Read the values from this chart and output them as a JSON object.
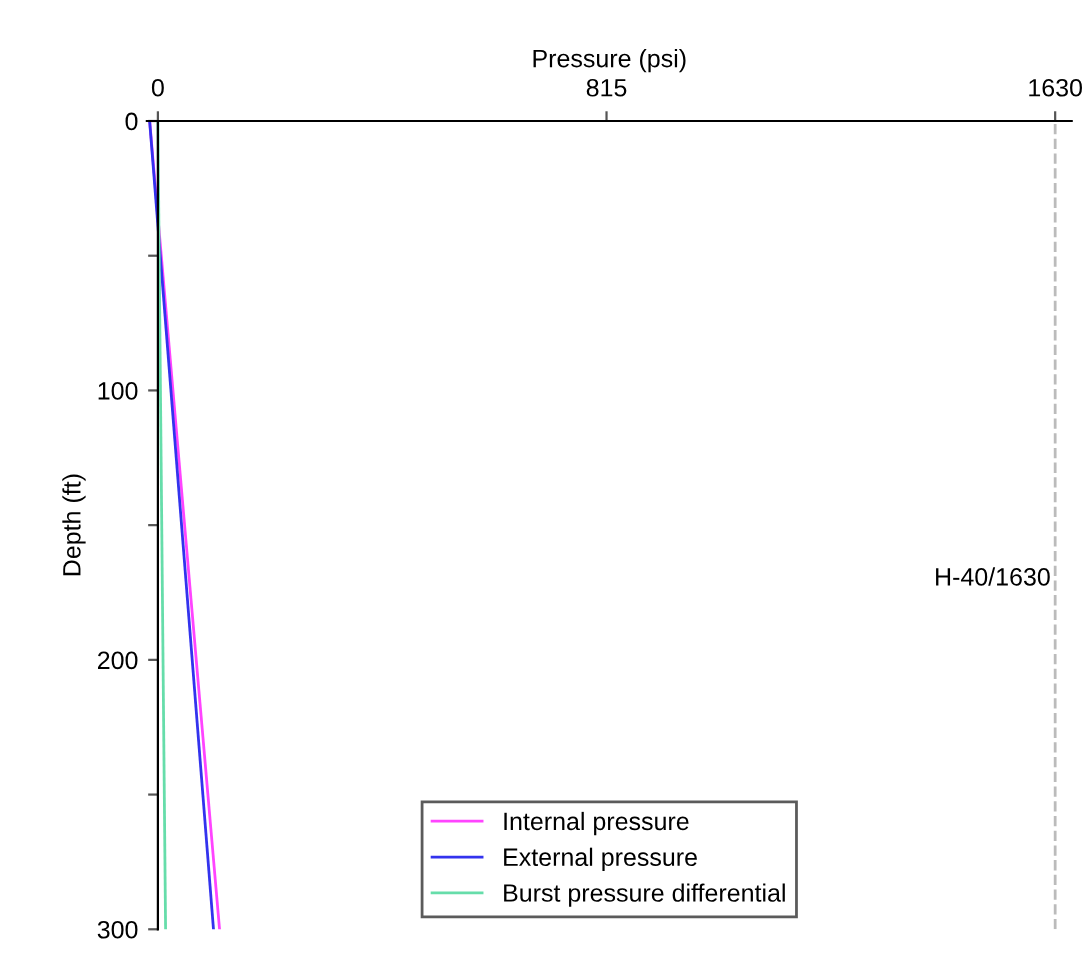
{
  "chart_data": {
    "type": "line",
    "xlabel": "Pressure (psi)",
    "ylabel": "Depth (ft)",
    "series": [
      {
        "name": "Internal pressure",
        "color": "#ff44ff",
        "x": [
          -15,
          112
        ],
        "values": [
          0,
          300
        ]
      },
      {
        "name": "External pressure",
        "color": "#3333ee",
        "x": [
          -15,
          101
        ],
        "values": [
          0,
          300
        ]
      },
      {
        "name": "Burst pressure differential",
        "color": "#66ddaa",
        "x": [
          0,
          14
        ],
        "values": [
          0,
          300
        ]
      }
    ],
    "xlim": [
      -20,
      1660
    ],
    "xticks": [
      0,
      815,
      1630
    ],
    "ylim": [
      300,
      0
    ],
    "yticks": [
      0,
      {
        "value": 50,
        "label": null
      },
      100,
      {
        "value": 150,
        "label": null
      },
      200,
      {
        "value": 250,
        "label": null
      },
      300
    ],
    "ref_lines": [
      {
        "axis": "x",
        "value": 1630,
        "label": "H-40/1630",
        "color": "#bbbbbb",
        "line_style": "dashed"
      }
    ],
    "legend": "bottom",
    "grid": false
  }
}
